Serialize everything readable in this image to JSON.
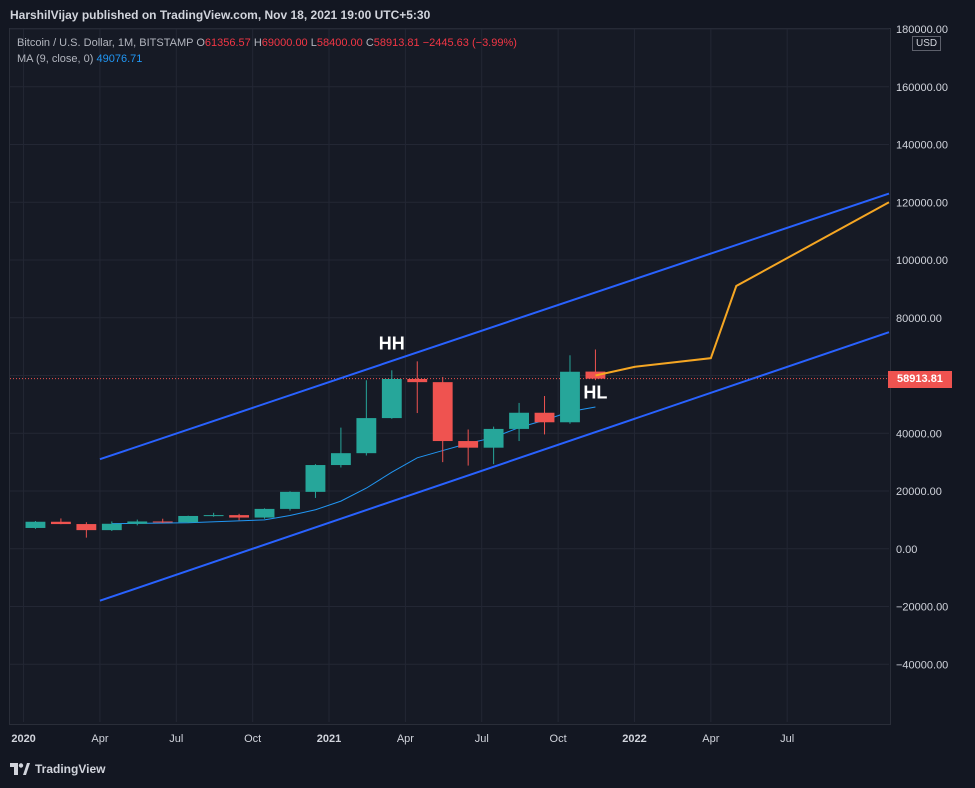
{
  "header": {
    "publisher": "HarshilVijay published on TradingView.com, Nov 18, 2021 19:00 UTC+5:30"
  },
  "legend": {
    "symbol": "Bitcoin / U.S. Dollar, 1M, BITSTAMP",
    "open_label": "O",
    "open": "61356.57",
    "high_label": "H",
    "high": "69000.00",
    "low_label": "L",
    "low": "58400.00",
    "close_label": "C",
    "close": "58913.81",
    "change": "−2445.63 (−3.99%)",
    "ma_label": "MA (9, close, 0)",
    "ma_value": "49076.71"
  },
  "price_scale": {
    "currency": "USD",
    "last_price": "58913.81"
  },
  "footer": {
    "brand": "TradingView"
  },
  "colors": {
    "up": "#26a69a",
    "down": "#ef5350",
    "channel": "#2962ff",
    "projection": "#f5a623",
    "ma": "#2196f3"
  },
  "chart_data": {
    "type": "candlestick",
    "interval": "1M",
    "ylim": [
      -60000,
      180000
    ],
    "y_ticks": [
      180000,
      160000,
      140000,
      120000,
      100000,
      80000,
      60000,
      40000,
      20000,
      0,
      -20000,
      -40000
    ],
    "y_tick_labels": [
      "180000.00",
      "160000.00",
      "140000.00",
      "120000.00",
      "100000.00",
      "80000.00",
      "",
      "40000.00",
      "20000.00",
      "0.00",
      "−20000.00",
      "−40000.00"
    ],
    "x_labels": [
      "2020",
      "Apr",
      "Jul",
      "Oct",
      "2021",
      "Apr",
      "Jul",
      "Oct",
      "2022",
      "Apr",
      "Jul"
    ],
    "x_label_months": [
      "2020-01",
      "2020-04",
      "2020-07",
      "2020-10",
      "2021-01",
      "2021-04",
      "2021-07",
      "2021-10",
      "2022-01",
      "2022-04",
      "2022-07"
    ],
    "x_range_months": [
      "2019-12-15",
      "2022-10-31"
    ],
    "candles": [
      {
        "t": "2020-01",
        "o": 7200,
        "h": 9600,
        "l": 6900,
        "c": 9350
      },
      {
        "t": "2020-02",
        "o": 9350,
        "h": 10500,
        "l": 8500,
        "c": 8550
      },
      {
        "t": "2020-03",
        "o": 8550,
        "h": 9200,
        "l": 3850,
        "c": 6450
      },
      {
        "t": "2020-04",
        "o": 6450,
        "h": 9450,
        "l": 6150,
        "c": 8650
      },
      {
        "t": "2020-05",
        "o": 8650,
        "h": 10100,
        "l": 8100,
        "c": 9450
      },
      {
        "t": "2020-06",
        "o": 9450,
        "h": 10400,
        "l": 8900,
        "c": 9150
      },
      {
        "t": "2020-07",
        "o": 9150,
        "h": 11450,
        "l": 8950,
        "c": 11350
      },
      {
        "t": "2020-08",
        "o": 11350,
        "h": 12450,
        "l": 11100,
        "c": 11650
      },
      {
        "t": "2020-09",
        "o": 11650,
        "h": 12100,
        "l": 9850,
        "c": 10800
      },
      {
        "t": "2020-10",
        "o": 10800,
        "h": 14000,
        "l": 10400,
        "c": 13800
      },
      {
        "t": "2020-11",
        "o": 13800,
        "h": 19900,
        "l": 13200,
        "c": 19700
      },
      {
        "t": "2020-12",
        "o": 19700,
        "h": 29300,
        "l": 17600,
        "c": 28990
      },
      {
        "t": "2021-01",
        "o": 28990,
        "h": 41950,
        "l": 28150,
        "c": 33100
      },
      {
        "t": "2021-02",
        "o": 33100,
        "h": 58350,
        "l": 32300,
        "c": 45250
      },
      {
        "t": "2021-03",
        "o": 45250,
        "h": 61800,
        "l": 45000,
        "c": 58800
      },
      {
        "t": "2021-04",
        "o": 58800,
        "h": 64900,
        "l": 47000,
        "c": 57700
      },
      {
        "t": "2021-05",
        "o": 57700,
        "h": 59500,
        "l": 30000,
        "c": 37300
      },
      {
        "t": "2021-06",
        "o": 37300,
        "h": 41300,
        "l": 28800,
        "c": 35000
      },
      {
        "t": "2021-07",
        "o": 35000,
        "h": 42300,
        "l": 29300,
        "c": 41500
      },
      {
        "t": "2021-08",
        "o": 41500,
        "h": 50500,
        "l": 37300,
        "c": 47100
      },
      {
        "t": "2021-09",
        "o": 47100,
        "h": 52900,
        "l": 39600,
        "c": 43800
      },
      {
        "t": "2021-10",
        "o": 43800,
        "h": 67000,
        "l": 43300,
        "c": 61300
      },
      {
        "t": "2021-11",
        "o": 61356.57,
        "h": 69000,
        "l": 58400,
        "c": 58913.81
      }
    ],
    "moving_average": {
      "name": "MA (9, close, 0)",
      "points": [
        {
          "t": "2020-04",
          "v": 8700
        },
        {
          "t": "2020-07",
          "v": 9000
        },
        {
          "t": "2020-10",
          "v": 10000
        },
        {
          "t": "2020-11",
          "v": 11500
        },
        {
          "t": "2020-12",
          "v": 13500
        },
        {
          "t": "2021-01",
          "v": 16500
        },
        {
          "t": "2021-02",
          "v": 21000
        },
        {
          "t": "2021-03",
          "v": 26500
        },
        {
          "t": "2021-04",
          "v": 31500
        },
        {
          "t": "2021-05",
          "v": 34000
        },
        {
          "t": "2021-06",
          "v": 36500
        },
        {
          "t": "2021-07",
          "v": 38500
        },
        {
          "t": "2021-08",
          "v": 42000
        },
        {
          "t": "2021-09",
          "v": 44500
        },
        {
          "t": "2021-10",
          "v": 47500
        },
        {
          "t": "2021-11",
          "v": 49076.71
        }
      ]
    },
    "channel_lines": [
      {
        "name": "upper",
        "from": {
          "t": "2020-04",
          "v": 31000
        },
        "to": {
          "t": "2022-10-31",
          "v": 123000
        }
      },
      {
        "name": "lower",
        "from": {
          "t": "2020-04",
          "v": -18000
        },
        "to": {
          "t": "2022-10-31",
          "v": 75000
        }
      }
    ],
    "projection": [
      {
        "t": "2021-11-15",
        "v": 60000
      },
      {
        "t": "2022-01",
        "v": 63000
      },
      {
        "t": "2022-04",
        "v": 66000
      },
      {
        "t": "2022-05",
        "v": 91000
      },
      {
        "t": "2022-10-31",
        "v": 120000
      }
    ],
    "annotations": [
      {
        "text": "HH",
        "t": "2021-03-15",
        "v": 69000
      },
      {
        "text": "HL",
        "t": "2021-11-15",
        "v": 52000
      }
    ],
    "last_price_line": 58913.81
  }
}
